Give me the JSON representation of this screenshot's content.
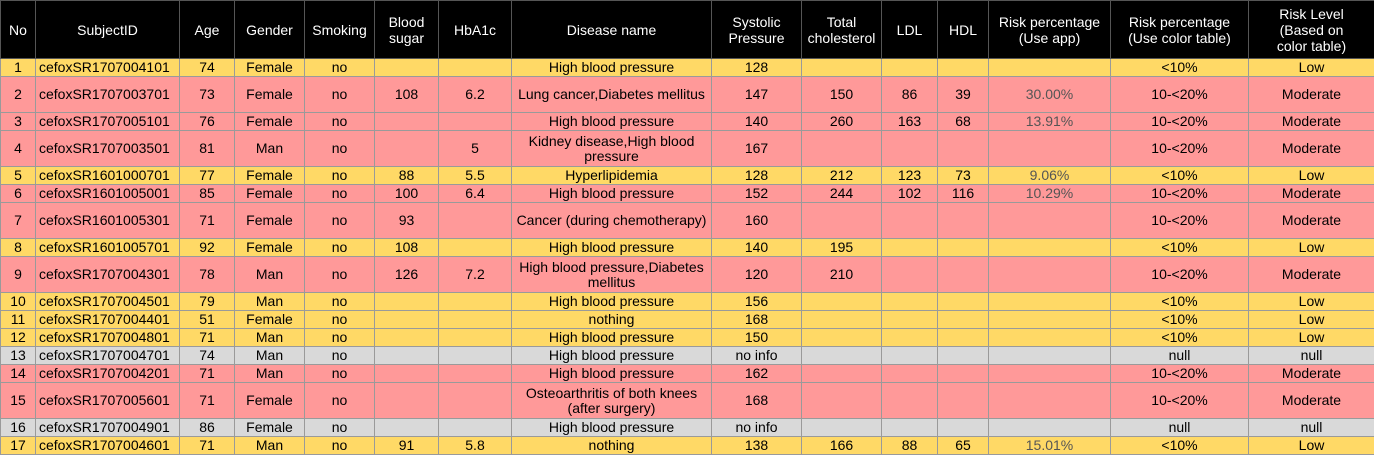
{
  "colors": {
    "header_bg": "#000000",
    "low": "#FFD966",
    "moderate": "#FF9999",
    "null": "#D9D9D9"
  },
  "headers": [
    "No",
    "SubjectID",
    "Age",
    "Gender",
    "Smoking",
    "Blood\nsugar",
    "HbA1c",
    "Disease name",
    "Systolic\nPressure",
    "Total\ncholesterol",
    "LDL",
    "HDL",
    "Risk percentage\n(Use app)",
    "Risk percentage\n(Use color table)",
    "Risk Level\n(Based on\ncolor table)"
  ],
  "rows": [
    {
      "no": "1",
      "subject": "cefoxSR1707004101",
      "age": "74",
      "gender": "Female",
      "smoking": "no",
      "sugar": "",
      "hba1c": "",
      "disease": "High blood pressure",
      "systolic": "128",
      "chol": "",
      "ldl": "",
      "hdl": "",
      "risk_app": "",
      "risk_table": "<10%",
      "level": "Low",
      "color": "yellow",
      "size": "short"
    },
    {
      "no": "2",
      "subject": "cefoxSR1707003701",
      "age": "73",
      "gender": "Female",
      "smoking": "no",
      "sugar": "108",
      "hba1c": "6.2",
      "disease": "Lung cancer,Diabetes mellitus",
      "systolic": "147",
      "chol": "150",
      "ldl": "86",
      "hdl": "39",
      "risk_app": "30.00%",
      "risk_table": "10-<20%",
      "level": "Moderate",
      "color": "red",
      "size": "tall"
    },
    {
      "no": "3",
      "subject": "cefoxSR1707005101",
      "age": "76",
      "gender": "Female",
      "smoking": "no",
      "sugar": "",
      "hba1c": "",
      "disease": "High blood pressure",
      "systolic": "140",
      "chol": "260",
      "ldl": "163",
      "hdl": "68",
      "risk_app": "13.91%",
      "risk_table": "10-<20%",
      "level": "Moderate",
      "color": "red",
      "size": "short"
    },
    {
      "no": "4",
      "subject": "cefoxSR1707003501",
      "age": "81",
      "gender": "Man",
      "smoking": "no",
      "sugar": "",
      "hba1c": "5",
      "disease": "Kidney disease,High blood pressure",
      "systolic": "167",
      "chol": "",
      "ldl": "",
      "hdl": "",
      "risk_app": "",
      "risk_table": "10-<20%",
      "level": "Moderate",
      "color": "red",
      "size": "tall"
    },
    {
      "no": "5",
      "subject": "cefoxSR1601000701",
      "age": "77",
      "gender": "Female",
      "smoking": "no",
      "sugar": "88",
      "hba1c": "5.5",
      "disease": "Hyperlipidemia",
      "systolic": "128",
      "chol": "212",
      "ldl": "123",
      "hdl": "73",
      "risk_app": "9.06%",
      "risk_table": "<10%",
      "level": "Low",
      "color": "yellow",
      "size": "short"
    },
    {
      "no": "6",
      "subject": "cefoxSR1601005001",
      "age": "85",
      "gender": "Female",
      "smoking": "no",
      "sugar": "100",
      "hba1c": "6.4",
      "disease": "High blood pressure",
      "systolic": "152",
      "chol": "244",
      "ldl": "102",
      "hdl": "116",
      "risk_app": "10.29%",
      "risk_table": "10-<20%",
      "level": "Moderate",
      "color": "red",
      "size": "short"
    },
    {
      "no": "7",
      "subject": "cefoxSR1601005301",
      "age": "71",
      "gender": "Female",
      "smoking": "no",
      "sugar": "93",
      "hba1c": "",
      "disease": "Cancer (during chemotherapy)",
      "systolic": "160",
      "chol": "",
      "ldl": "",
      "hdl": "",
      "risk_app": "",
      "risk_table": "10-<20%",
      "level": "Moderate",
      "color": "red",
      "size": "tall"
    },
    {
      "no": "8",
      "subject": "cefoxSR1601005701",
      "age": "92",
      "gender": "Female",
      "smoking": "no",
      "sugar": "108",
      "hba1c": "",
      "disease": "High blood pressure",
      "systolic": "140",
      "chol": "195",
      "ldl": "",
      "hdl": "",
      "risk_app": "",
      "risk_table": "<10%",
      "level": "Low",
      "color": "yellow",
      "size": "short"
    },
    {
      "no": "9",
      "subject": "cefoxSR1707004301",
      "age": "78",
      "gender": "Man",
      "smoking": "no",
      "sugar": "126",
      "hba1c": "7.2",
      "disease": "High blood pressure,Diabetes mellitus",
      "systolic": "120",
      "chol": "210",
      "ldl": "",
      "hdl": "",
      "risk_app": "",
      "risk_table": "10-<20%",
      "level": "Moderate",
      "color": "red",
      "size": "tall"
    },
    {
      "no": "10",
      "subject": "cefoxSR1707004501",
      "age": "79",
      "gender": "Man",
      "smoking": "no",
      "sugar": "",
      "hba1c": "",
      "disease": "High blood pressure",
      "systolic": "156",
      "chol": "",
      "ldl": "",
      "hdl": "",
      "risk_app": "",
      "risk_table": "<10%",
      "level": "Low",
      "color": "yellow",
      "size": "short"
    },
    {
      "no": "11",
      "subject": "cefoxSR1707004401",
      "age": "51",
      "gender": "Female",
      "smoking": "no",
      "sugar": "",
      "hba1c": "",
      "disease": "nothing",
      "systolic": "168",
      "chol": "",
      "ldl": "",
      "hdl": "",
      "risk_app": "",
      "risk_table": "<10%",
      "level": "Low",
      "color": "yellow",
      "size": "short"
    },
    {
      "no": "12",
      "subject": "cefoxSR1707004801",
      "age": "71",
      "gender": "Man",
      "smoking": "no",
      "sugar": "",
      "hba1c": "",
      "disease": "High blood pressure",
      "systolic": "150",
      "chol": "",
      "ldl": "",
      "hdl": "",
      "risk_app": "",
      "risk_table": "<10%",
      "level": "Low",
      "color": "yellow",
      "size": "short"
    },
    {
      "no": "13",
      "subject": "cefoxSR1707004701",
      "age": "74",
      "gender": "Man",
      "smoking": "no",
      "sugar": "",
      "hba1c": "",
      "disease": "High blood pressure",
      "systolic": "no info",
      "chol": "",
      "ldl": "",
      "hdl": "",
      "risk_app": "",
      "risk_table": "null",
      "level": "null",
      "color": "gray",
      "size": "short"
    },
    {
      "no": "14",
      "subject": "cefoxSR1707004201",
      "age": "71",
      "gender": "Man",
      "smoking": "no",
      "sugar": "",
      "hba1c": "",
      "disease": "High blood pressure",
      "systolic": "162",
      "chol": "",
      "ldl": "",
      "hdl": "",
      "risk_app": "",
      "risk_table": "10-<20%",
      "level": "Moderate",
      "color": "red",
      "size": "short"
    },
    {
      "no": "15",
      "subject": "cefoxSR1707005601",
      "age": "71",
      "gender": "Female",
      "smoking": "no",
      "sugar": "",
      "hba1c": "",
      "disease": "Osteoarthritis of both knees (after surgery)",
      "systolic": "168",
      "chol": "",
      "ldl": "",
      "hdl": "",
      "risk_app": "",
      "risk_table": "10-<20%",
      "level": "Moderate",
      "color": "red",
      "size": "tall"
    },
    {
      "no": "16",
      "subject": "cefoxSR1707004901",
      "age": "86",
      "gender": "Female",
      "smoking": "no",
      "sugar": "",
      "hba1c": "",
      "disease": "High blood pressure",
      "systolic": "no info",
      "chol": "",
      "ldl": "",
      "hdl": "",
      "risk_app": "",
      "risk_table": "null",
      "level": "null",
      "color": "gray",
      "size": "short"
    },
    {
      "no": "17",
      "subject": "cefoxSR1707004601",
      "age": "71",
      "gender": "Man",
      "smoking": "no",
      "sugar": "91",
      "hba1c": "5.8",
      "disease": "nothing",
      "systolic": "138",
      "chol": "166",
      "ldl": "88",
      "hdl": "65",
      "risk_app": "15.01%",
      "risk_table": "<10%",
      "level": "Low",
      "color": "yellow",
      "size": "short"
    }
  ]
}
